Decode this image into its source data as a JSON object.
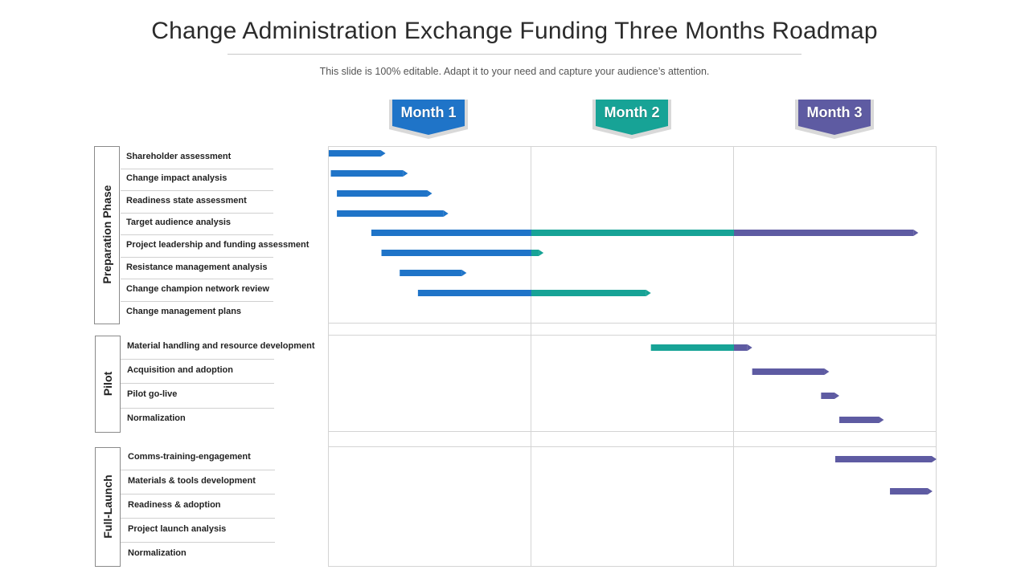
{
  "title": "Change Administration Exchange Funding Three Months Roadmap",
  "subtitle": "This slide is 100% editable. Adapt it to your need and capture your audience’s attention.",
  "months": [
    {
      "label": "Month 1",
      "color": "#1f74c8"
    },
    {
      "label": "Month 2",
      "color": "#17a396"
    },
    {
      "label": "Month 3",
      "color": "#5e5ba2"
    }
  ],
  "colors": {
    "month1": "#1f74c8",
    "month2": "#17a396",
    "month3": "#5e5ba2"
  },
  "phases": [
    {
      "name": "Preparation Phase",
      "tasks": [
        {
          "label": "Shareholder assessment",
          "start": 0.0,
          "end": 0.28
        },
        {
          "label": "Change impact analysis",
          "start": 0.01,
          "end": 0.39
        },
        {
          "label": "Readiness state assessment",
          "start": 0.04,
          "end": 0.51
        },
        {
          "label": "Target audience analysis",
          "start": 0.04,
          "end": 0.59
        },
        {
          "label": "Project leadership and funding assessment",
          "start": 0.21,
          "end": 2.91
        },
        {
          "label": "Resistance management analysis",
          "start": 0.26,
          "end": 1.06
        },
        {
          "label": "Change champion network review",
          "start": 0.35,
          "end": 0.68
        },
        {
          "label": "Change management plans",
          "start": 0.44,
          "end": 1.59
        }
      ]
    },
    {
      "name": "Pilot",
      "tasks": [
        {
          "label": "Material handling and resource development",
          "start": 1.59,
          "end": 2.09
        },
        {
          "label": "Acquisition and adoption",
          "start": 2.09,
          "end": 2.47
        },
        {
          "label": "Pilot go-live",
          "start": 2.43,
          "end": 2.52
        },
        {
          "label": "Normalization",
          "start": 2.52,
          "end": 2.74
        }
      ]
    },
    {
      "name": "Full-Launch",
      "tasks": [
        {
          "label": "Comms-training-engagement",
          "start": 2.5,
          "end": 3.0
        },
        {
          "label": "Materials & tools development",
          "start": 2.77,
          "end": 2.98
        },
        {
          "label": "Readiness & adoption"
        },
        {
          "label": "Project launch analysis"
        },
        {
          "label": "Normalization"
        }
      ]
    }
  ]
}
